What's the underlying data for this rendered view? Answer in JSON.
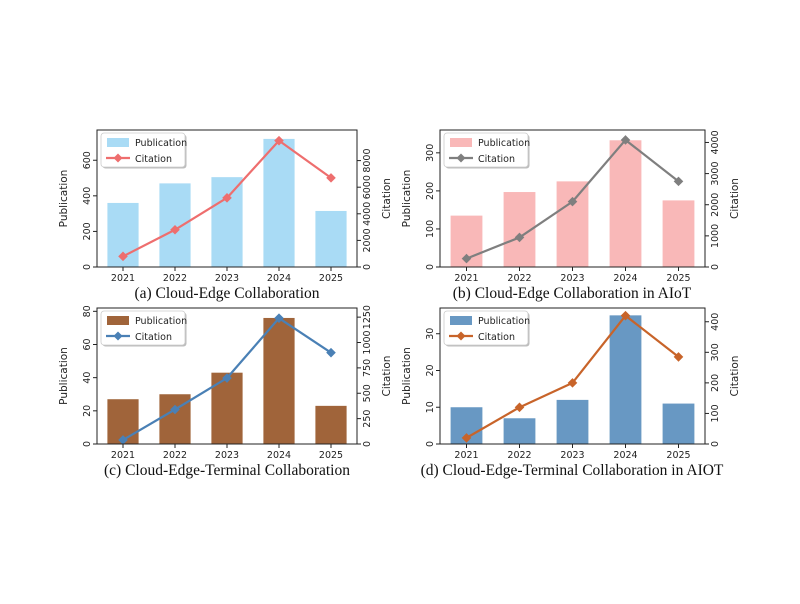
{
  "chart_data": [
    {
      "type": "bar",
      "caption": "(a) Cloud-Edge Collaboration",
      "categories": [
        "2021",
        "2022",
        "2023",
        "2024",
        "2025"
      ],
      "series": [
        {
          "name": "Publication",
          "type": "bar",
          "axis": "left",
          "color": "#a9dbf5",
          "values": [
            360,
            470,
            505,
            720,
            315
          ]
        },
        {
          "name": "Citation",
          "type": "line",
          "axis": "right",
          "color": "#ee6e6e",
          "marker": "diamond",
          "values": [
            800,
            2800,
            5200,
            9500,
            6700
          ]
        }
      ],
      "ylabel_left": "Publication",
      "ylim_left": [
        0,
        770
      ],
      "yticks_left": [
        0,
        200,
        400,
        600
      ],
      "ylabel_right": "Citation",
      "ylim_right": [
        0,
        10300
      ],
      "yticks_right": [
        0,
        2000,
        4000,
        6000,
        8000
      ],
      "legend": "top-left",
      "grid": false
    },
    {
      "type": "bar",
      "caption": "(b) Cloud-Edge Collaboration in AIoT",
      "categories": [
        "2021",
        "2022",
        "2023",
        "2024",
        "2025"
      ],
      "series": [
        {
          "name": "Publication",
          "type": "bar",
          "axis": "left",
          "color": "#f9b8b8",
          "values": [
            135,
            197,
            225,
            333,
            175
          ]
        },
        {
          "name": "Citation",
          "type": "line",
          "axis": "right",
          "color": "#7f7f7f",
          "marker": "diamond",
          "values": [
            270,
            950,
            2100,
            4080,
            2750
          ]
        }
      ],
      "ylabel_left": "Publication",
      "ylim_left": [
        0,
        360
      ],
      "yticks_left": [
        0,
        100,
        200,
        300
      ],
      "ylabel_right": "Citation",
      "ylim_right": [
        0,
        4400
      ],
      "yticks_right": [
        0,
        1000,
        2000,
        3000,
        4000
      ],
      "legend": "top-left",
      "grid": false
    },
    {
      "type": "bar",
      "caption": "(c) Cloud-Edge-Terminal Collaboration",
      "categories": [
        "2021",
        "2022",
        "2023",
        "2024",
        "2025"
      ],
      "series": [
        {
          "name": "Publication",
          "type": "bar",
          "axis": "left",
          "color": "#a0643a",
          "values": [
            27,
            30,
            43,
            76,
            23
          ]
        },
        {
          "name": "Citation",
          "type": "line",
          "axis": "right",
          "color": "#4a80b5",
          "marker": "diamond",
          "values": [
            40,
            340,
            650,
            1240,
            900
          ]
        }
      ],
      "ylabel_left": "Publication",
      "ylim_left": [
        0,
        82
      ],
      "yticks_left": [
        0,
        20,
        40,
        60,
        80
      ],
      "ylabel_right": "Citation",
      "ylim_right": [
        0,
        1340
      ],
      "yticks_right": [
        0,
        250,
        500,
        750,
        1000,
        1250
      ],
      "legend": "top-left",
      "grid": false
    },
    {
      "type": "bar",
      "caption": "(d) Cloud-Edge-Terminal Collaboration in AIOT",
      "categories": [
        "2021",
        "2022",
        "2023",
        "2024",
        "2025"
      ],
      "series": [
        {
          "name": "Publication",
          "type": "bar",
          "axis": "left",
          "color": "#6898c3",
          "values": [
            10,
            7,
            12,
            35,
            11
          ]
        },
        {
          "name": "Citation",
          "type": "line",
          "axis": "right",
          "color": "#c8642a",
          "marker": "diamond",
          "values": [
            20,
            120,
            200,
            420,
            285
          ]
        }
      ],
      "ylabel_left": "Publication",
      "ylim_left": [
        0,
        37
      ],
      "yticks_left": [
        0,
        10,
        20,
        30
      ],
      "ylabel_right": "Citation",
      "ylim_right": [
        0,
        445
      ],
      "yticks_right": [
        0,
        100,
        200,
        300,
        400
      ],
      "legend": "top-left",
      "grid": false
    }
  ]
}
